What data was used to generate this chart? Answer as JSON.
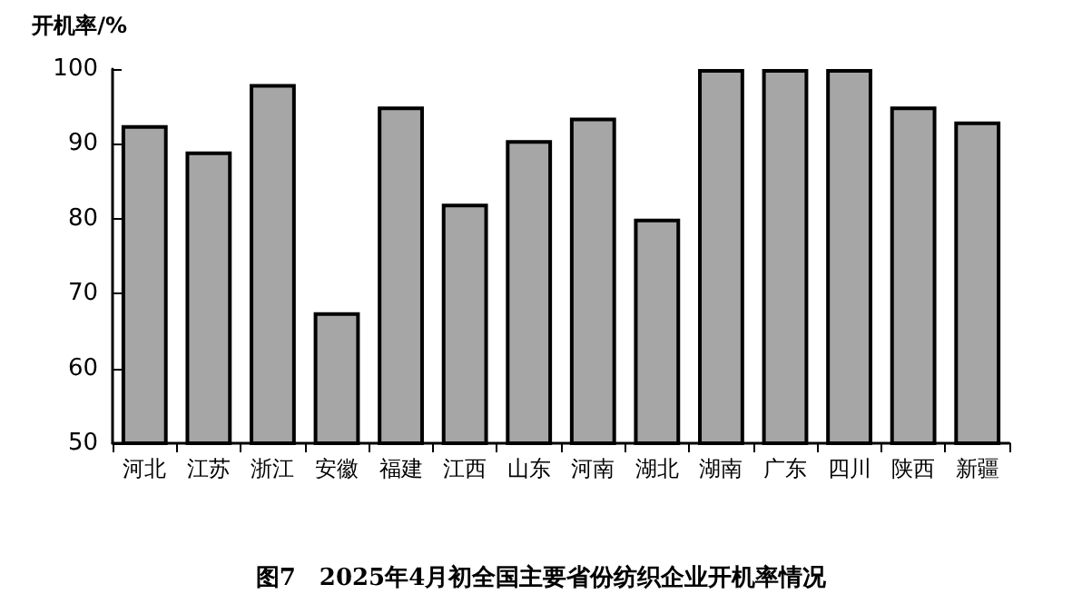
{
  "chart_data": {
    "type": "bar",
    "title": "图7　2025年4月初全国主要省份纺织企业开机率情况",
    "ylabel": "开机率/%",
    "categories": [
      "河北",
      "江苏",
      "浙江",
      "安徽",
      "福建",
      "江西",
      "山东",
      "河南",
      "湖北",
      "湖南",
      "广东",
      "四川",
      "陕西",
      "新疆"
    ],
    "values": [
      92.5,
      89,
      98,
      67.5,
      95,
      82,
      90.5,
      93.5,
      80,
      100,
      100,
      100,
      95,
      93
    ],
    "color": "#a6a6a6",
    "ylim": [
      50,
      100
    ],
    "yticks": [
      50,
      60,
      70,
      80,
      90,
      100
    ]
  }
}
